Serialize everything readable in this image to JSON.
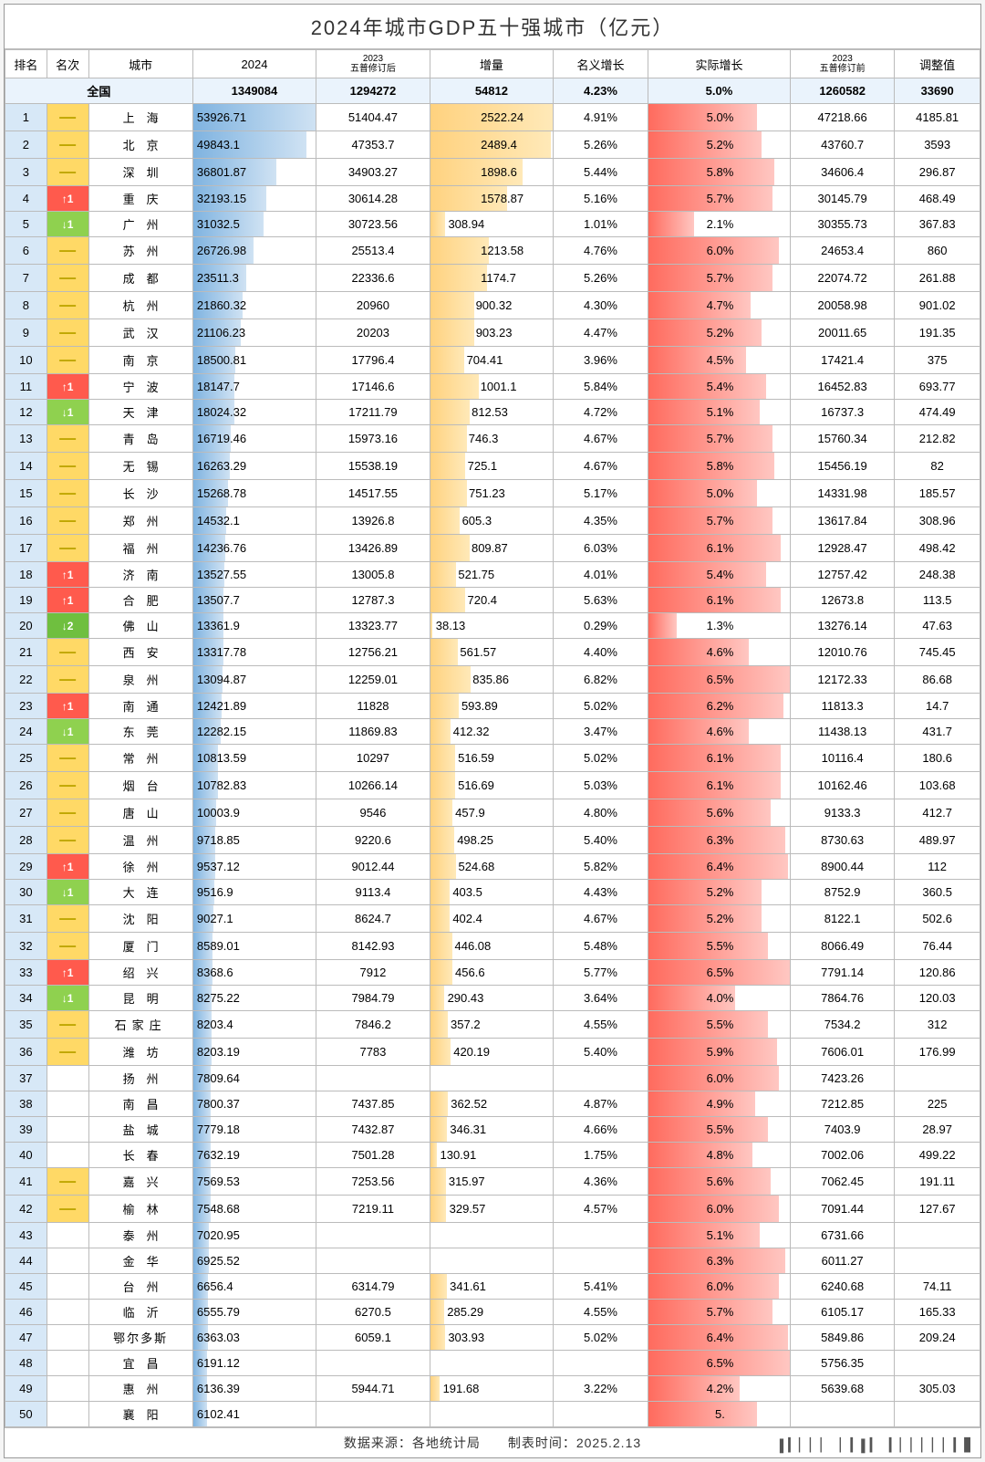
{
  "title": "2024年城市GDP五十强城市（亿元）",
  "headers": {
    "rank": "排名",
    "change": "名次",
    "city": "城市",
    "y2024": "2024",
    "y2023after": "2023\n五普修订后",
    "increment": "增量",
    "nominal": "名义增长",
    "real": "实际增长",
    "y2023before": "2023\n五普修订前",
    "adjust": "调整值"
  },
  "national": {
    "label": "全国",
    "y2024": "1349084",
    "y2023after": "1294272",
    "increment": "54812",
    "nominal": "4.23%",
    "real": "5.0%",
    "y2023before": "1260582",
    "adjust": "33690"
  },
  "style": {
    "max2024": 53926.71,
    "maxInc": 2522.24,
    "maxReal": 6.5,
    "barBlue": "#9fc9eb",
    "barOrange": "#ffcf6e",
    "barRed": "#ff7e73",
    "rankBg": "#d7e8f7",
    "dashBg": "#ffd966",
    "upBg": "#ff5a4d",
    "downBg": "#8fd14f"
  },
  "rows": [
    {
      "r": 1,
      "chg": "—",
      "city": "上　海",
      "y2024": "53926.71",
      "y2023a": "51404.47",
      "inc": "2522.24",
      "nom": "4.91%",
      "real": "5.0%",
      "y2023b": "47218.66",
      "adj": "4185.81"
    },
    {
      "r": 2,
      "chg": "—",
      "city": "北　京",
      "y2024": "49843.1",
      "y2023a": "47353.7",
      "inc": "2489.4",
      "nom": "5.26%",
      "real": "5.2%",
      "y2023b": "43760.7",
      "adj": "3593"
    },
    {
      "r": 3,
      "chg": "—",
      "city": "深　圳",
      "y2024": "36801.87",
      "y2023a": "34903.27",
      "inc": "1898.6",
      "nom": "5.44%",
      "real": "5.8%",
      "y2023b": "34606.4",
      "adj": "296.87"
    },
    {
      "r": 4,
      "chg": "↑1",
      "city": "重　庆",
      "y2024": "32193.15",
      "y2023a": "30614.28",
      "inc": "1578.87",
      "nom": "5.16%",
      "real": "5.7%",
      "y2023b": "30145.79",
      "adj": "468.49"
    },
    {
      "r": 5,
      "chg": "↓1",
      "city": "广　州",
      "y2024": "31032.5",
      "y2023a": "30723.56",
      "inc": "308.94",
      "nom": "1.01%",
      "real": "2.1%",
      "y2023b": "30355.73",
      "adj": "367.83"
    },
    {
      "r": 6,
      "chg": "—",
      "city": "苏　州",
      "y2024": "26726.98",
      "y2023a": "25513.4",
      "inc": "1213.58",
      "nom": "4.76%",
      "real": "6.0%",
      "y2023b": "24653.4",
      "adj": "860"
    },
    {
      "r": 7,
      "chg": "—",
      "city": "成　都",
      "y2024": "23511.3",
      "y2023a": "22336.6",
      "inc": "1174.7",
      "nom": "5.26%",
      "real": "5.7%",
      "y2023b": "22074.72",
      "adj": "261.88"
    },
    {
      "r": 8,
      "chg": "—",
      "city": "杭　州",
      "y2024": "21860.32",
      "y2023a": "20960",
      "inc": "900.32",
      "nom": "4.30%",
      "real": "4.7%",
      "y2023b": "20058.98",
      "adj": "901.02"
    },
    {
      "r": 9,
      "chg": "—",
      "city": "武　汉",
      "y2024": "21106.23",
      "y2023a": "20203",
      "inc": "903.23",
      "nom": "4.47%",
      "real": "5.2%",
      "y2023b": "20011.65",
      "adj": "191.35"
    },
    {
      "r": 10,
      "chg": "—",
      "city": "南　京",
      "y2024": "18500.81",
      "y2023a": "17796.4",
      "inc": "704.41",
      "nom": "3.96%",
      "real": "4.5%",
      "y2023b": "17421.4",
      "adj": "375"
    },
    {
      "r": 11,
      "chg": "↑1",
      "city": "宁　波",
      "y2024": "18147.7",
      "y2023a": "17146.6",
      "inc": "1001.1",
      "nom": "5.84%",
      "real": "5.4%",
      "y2023b": "16452.83",
      "adj": "693.77"
    },
    {
      "r": 12,
      "chg": "↓1",
      "city": "天　津",
      "y2024": "18024.32",
      "y2023a": "17211.79",
      "inc": "812.53",
      "nom": "4.72%",
      "real": "5.1%",
      "y2023b": "16737.3",
      "adj": "474.49"
    },
    {
      "r": 13,
      "chg": "—",
      "city": "青　岛",
      "y2024": "16719.46",
      "y2023a": "15973.16",
      "inc": "746.3",
      "nom": "4.67%",
      "real": "5.7%",
      "y2023b": "15760.34",
      "adj": "212.82"
    },
    {
      "r": 14,
      "chg": "—",
      "city": "无　锡",
      "y2024": "16263.29",
      "y2023a": "15538.19",
      "inc": "725.1",
      "nom": "4.67%",
      "real": "5.8%",
      "y2023b": "15456.19",
      "adj": "82"
    },
    {
      "r": 15,
      "chg": "—",
      "city": "长　沙",
      "y2024": "15268.78",
      "y2023a": "14517.55",
      "inc": "751.23",
      "nom": "5.17%",
      "real": "5.0%",
      "y2023b": "14331.98",
      "adj": "185.57"
    },
    {
      "r": 16,
      "chg": "—",
      "city": "郑　州",
      "y2024": "14532.1",
      "y2023a": "13926.8",
      "inc": "605.3",
      "nom": "4.35%",
      "real": "5.7%",
      "y2023b": "13617.84",
      "adj": "308.96"
    },
    {
      "r": 17,
      "chg": "—",
      "city": "福　州",
      "y2024": "14236.76",
      "y2023a": "13426.89",
      "inc": "809.87",
      "nom": "6.03%",
      "real": "6.1%",
      "y2023b": "12928.47",
      "adj": "498.42"
    },
    {
      "r": 18,
      "chg": "↑1",
      "city": "济　南",
      "y2024": "13527.55",
      "y2023a": "13005.8",
      "inc": "521.75",
      "nom": "4.01%",
      "real": "5.4%",
      "y2023b": "12757.42",
      "adj": "248.38"
    },
    {
      "r": 19,
      "chg": "↑1",
      "city": "合　肥",
      "y2024": "13507.7",
      "y2023a": "12787.3",
      "inc": "720.4",
      "nom": "5.63%",
      "real": "6.1%",
      "y2023b": "12673.8",
      "adj": "113.5"
    },
    {
      "r": 20,
      "chg": "↓2",
      "city": "佛　山",
      "y2024": "13361.9",
      "y2023a": "13323.77",
      "inc": "38.13",
      "nom": "0.29%",
      "real": "1.3%",
      "y2023b": "13276.14",
      "adj": "47.63"
    },
    {
      "r": 21,
      "chg": "—",
      "city": "西　安",
      "y2024": "13317.78",
      "y2023a": "12756.21",
      "inc": "561.57",
      "nom": "4.40%",
      "real": "4.6%",
      "y2023b": "12010.76",
      "adj": "745.45"
    },
    {
      "r": 22,
      "chg": "—",
      "city": "泉　州",
      "y2024": "13094.87",
      "y2023a": "12259.01",
      "inc": "835.86",
      "nom": "6.82%",
      "real": "6.5%",
      "y2023b": "12172.33",
      "adj": "86.68"
    },
    {
      "r": 23,
      "chg": "↑1",
      "city": "南　通",
      "y2024": "12421.89",
      "y2023a": "11828",
      "inc": "593.89",
      "nom": "5.02%",
      "real": "6.2%",
      "y2023b": "11813.3",
      "adj": "14.7"
    },
    {
      "r": 24,
      "chg": "↓1",
      "city": "东　莞",
      "y2024": "12282.15",
      "y2023a": "11869.83",
      "inc": "412.32",
      "nom": "3.47%",
      "real": "4.6%",
      "y2023b": "11438.13",
      "adj": "431.7"
    },
    {
      "r": 25,
      "chg": "—",
      "city": "常　州",
      "y2024": "10813.59",
      "y2023a": "10297",
      "inc": "516.59",
      "nom": "5.02%",
      "real": "6.1%",
      "y2023b": "10116.4",
      "adj": "180.6"
    },
    {
      "r": 26,
      "chg": "—",
      "city": "烟　台",
      "y2024": "10782.83",
      "y2023a": "10266.14",
      "inc": "516.69",
      "nom": "5.03%",
      "real": "6.1%",
      "y2023b": "10162.46",
      "adj": "103.68"
    },
    {
      "r": 27,
      "chg": "—",
      "city": "唐　山",
      "y2024": "10003.9",
      "y2023a": "9546",
      "inc": "457.9",
      "nom": "4.80%",
      "real": "5.6%",
      "y2023b": "9133.3",
      "adj": "412.7"
    },
    {
      "r": 28,
      "chg": "—",
      "city": "温　州",
      "y2024": "9718.85",
      "y2023a": "9220.6",
      "inc": "498.25",
      "nom": "5.40%",
      "real": "6.3%",
      "y2023b": "8730.63",
      "adj": "489.97"
    },
    {
      "r": 29,
      "chg": "↑1",
      "city": "徐　州",
      "y2024": "9537.12",
      "y2023a": "9012.44",
      "inc": "524.68",
      "nom": "5.82%",
      "real": "6.4%",
      "y2023b": "8900.44",
      "adj": "112"
    },
    {
      "r": 30,
      "chg": "↓1",
      "city": "大　连",
      "y2024": "9516.9",
      "y2023a": "9113.4",
      "inc": "403.5",
      "nom": "4.43%",
      "real": "5.2%",
      "y2023b": "8752.9",
      "adj": "360.5"
    },
    {
      "r": 31,
      "chg": "—",
      "city": "沈　阳",
      "y2024": "9027.1",
      "y2023a": "8624.7",
      "inc": "402.4",
      "nom": "4.67%",
      "real": "5.2%",
      "y2023b": "8122.1",
      "adj": "502.6"
    },
    {
      "r": 32,
      "chg": "—",
      "city": "厦　门",
      "y2024": "8589.01",
      "y2023a": "8142.93",
      "inc": "446.08",
      "nom": "5.48%",
      "real": "5.5%",
      "y2023b": "8066.49",
      "adj": "76.44"
    },
    {
      "r": 33,
      "chg": "↑1",
      "city": "绍　兴",
      "y2024": "8368.6",
      "y2023a": "7912",
      "inc": "456.6",
      "nom": "5.77%",
      "real": "6.5%",
      "y2023b": "7791.14",
      "adj": "120.86"
    },
    {
      "r": 34,
      "chg": "↓1",
      "city": "昆　明",
      "y2024": "8275.22",
      "y2023a": "7984.79",
      "inc": "290.43",
      "nom": "3.64%",
      "real": "4.0%",
      "y2023b": "7864.76",
      "adj": "120.03"
    },
    {
      "r": 35,
      "chg": "—",
      "city": "石家庄",
      "y2024": "8203.4",
      "y2023a": "7846.2",
      "inc": "357.2",
      "nom": "4.55%",
      "real": "5.5%",
      "y2023b": "7534.2",
      "adj": "312"
    },
    {
      "r": 36,
      "chg": "—",
      "city": "潍　坊",
      "y2024": "8203.19",
      "y2023a": "7783",
      "inc": "420.19",
      "nom": "5.40%",
      "real": "5.9%",
      "y2023b": "7606.01",
      "adj": "176.99"
    },
    {
      "r": 37,
      "chg": "",
      "city": "扬　州",
      "y2024": "7809.64",
      "y2023a": "",
      "inc": "",
      "nom": "",
      "real": "6.0%",
      "y2023b": "7423.26",
      "adj": ""
    },
    {
      "r": 38,
      "chg": "",
      "city": "南　昌",
      "y2024": "7800.37",
      "y2023a": "7437.85",
      "inc": "362.52",
      "nom": "4.87%",
      "real": "4.9%",
      "y2023b": "7212.85",
      "adj": "225"
    },
    {
      "r": 39,
      "chg": "",
      "city": "盐　城",
      "y2024": "7779.18",
      "y2023a": "7432.87",
      "inc": "346.31",
      "nom": "4.66%",
      "real": "5.5%",
      "y2023b": "7403.9",
      "adj": "28.97"
    },
    {
      "r": 40,
      "chg": "",
      "city": "长　春",
      "y2024": "7632.19",
      "y2023a": "7501.28",
      "inc": "130.91",
      "nom": "1.75%",
      "real": "4.8%",
      "y2023b": "7002.06",
      "adj": "499.22"
    },
    {
      "r": 41,
      "chg": "—",
      "city": "嘉　兴",
      "y2024": "7569.53",
      "y2023a": "7253.56",
      "inc": "315.97",
      "nom": "4.36%",
      "real": "5.6%",
      "y2023b": "7062.45",
      "adj": "191.11"
    },
    {
      "r": 42,
      "chg": "—",
      "city": "榆　林",
      "y2024": "7548.68",
      "y2023a": "7219.11",
      "inc": "329.57",
      "nom": "4.57%",
      "real": "6.0%",
      "y2023b": "7091.44",
      "adj": "127.67"
    },
    {
      "r": 43,
      "chg": "",
      "city": "泰　州",
      "y2024": "7020.95",
      "y2023a": "",
      "inc": "",
      "nom": "",
      "real": "5.1%",
      "y2023b": "6731.66",
      "adj": ""
    },
    {
      "r": 44,
      "chg": "",
      "city": "金　华",
      "y2024": "6925.52",
      "y2023a": "",
      "inc": "",
      "nom": "",
      "real": "6.3%",
      "y2023b": "6011.27",
      "adj": ""
    },
    {
      "r": 45,
      "chg": "",
      "city": "台　州",
      "y2024": "6656.4",
      "y2023a": "6314.79",
      "inc": "341.61",
      "nom": "5.41%",
      "real": "6.0%",
      "y2023b": "6240.68",
      "adj": "74.11"
    },
    {
      "r": 46,
      "chg": "",
      "city": "临　沂",
      "y2024": "6555.79",
      "y2023a": "6270.5",
      "inc": "285.29",
      "nom": "4.55%",
      "real": "5.7%",
      "y2023b": "6105.17",
      "adj": "165.33"
    },
    {
      "r": 47,
      "chg": "",
      "city": "鄂尔多斯",
      "y2024": "6363.03",
      "y2023a": "6059.1",
      "inc": "303.93",
      "nom": "5.02%",
      "real": "6.4%",
      "y2023b": "5849.86",
      "adj": "209.24"
    },
    {
      "r": 48,
      "chg": "",
      "city": "宜　昌",
      "y2024": "6191.12",
      "y2023a": "",
      "inc": "",
      "nom": "",
      "real": "6.5%",
      "y2023b": "5756.35",
      "adj": ""
    },
    {
      "r": 49,
      "chg": "",
      "city": "惠　州",
      "y2024": "6136.39",
      "y2023a": "5944.71",
      "inc": "191.68",
      "nom": "3.22%",
      "real": "4.2%",
      "y2023b": "5639.68",
      "adj": "305.03"
    },
    {
      "r": 50,
      "chg": "",
      "city": "襄　阳",
      "y2024": "6102.41",
      "y2023a": "",
      "inc": "",
      "nom": "",
      "real": "5.",
      "y2023b": "",
      "adj": ""
    }
  ],
  "footer": "数据来源：各地统计局　　制表时间：2025.2.13",
  "watermark": "▌▎▏▏▏ ▏▎▌▎ ▎▏▏▏▏▏▎▋"
}
